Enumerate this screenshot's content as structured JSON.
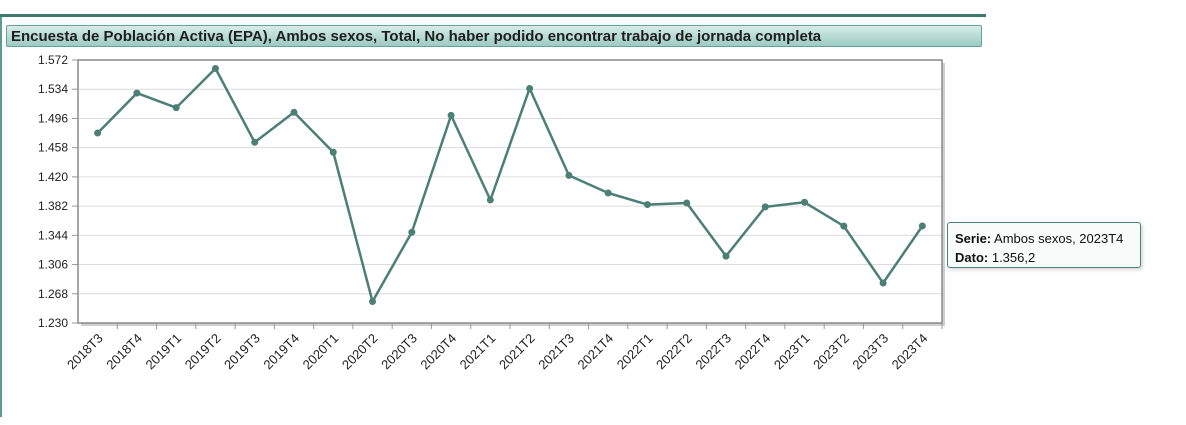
{
  "title": "Encuesta de Población Activa (EPA), Ambos sexos, Total, No haber podido encontrar trabajo de jornada completa",
  "colors": {
    "line": "#4c7f76",
    "accent": "#3f7a72",
    "grid": "#dcdcdc",
    "plot_border": "#8a8a8a"
  },
  "tooltip": {
    "serie_label": "Serie:",
    "serie_value": "Ambos sexos, 2023T4",
    "dato_label": "Dato:",
    "dato_value": "1.356,2"
  },
  "chart_data": {
    "type": "line",
    "title": "Encuesta de Población Activa (EPA), Ambos sexos, Total, No haber podido encontrar trabajo de jornada completa",
    "xlabel": "",
    "ylabel": "",
    "ylim": [
      1230,
      1572
    ],
    "grid": true,
    "y_ticks": [
      1230,
      1268,
      1306,
      1344,
      1382,
      1420,
      1458,
      1496,
      1534,
      1572
    ],
    "y_tick_labels": [
      "1.230",
      "1.268",
      "1.306",
      "1.344",
      "1.382",
      "1.420",
      "1.458",
      "1.496",
      "1.534",
      "1.572"
    ],
    "categories": [
      "2018T3",
      "2018T4",
      "2019T1",
      "2019T2",
      "2019T3",
      "2019T4",
      "2020T1",
      "2020T2",
      "2020T3",
      "2020T4",
      "2021T1",
      "2021T2",
      "2021T3",
      "2021T4",
      "2022T1",
      "2022T2",
      "2022T3",
      "2022T4",
      "2023T1",
      "2023T2",
      "2023T3",
      "2023T4"
    ],
    "series": [
      {
        "name": "Ambos sexos",
        "values": [
          1477,
          1529,
          1510,
          1561,
          1465,
          1504,
          1452,
          1258,
          1348,
          1500,
          1390,
          1535,
          1422,
          1399,
          1384,
          1386,
          1317,
          1381,
          1387,
          1356,
          1282,
          1356.2
        ]
      }
    ]
  }
}
